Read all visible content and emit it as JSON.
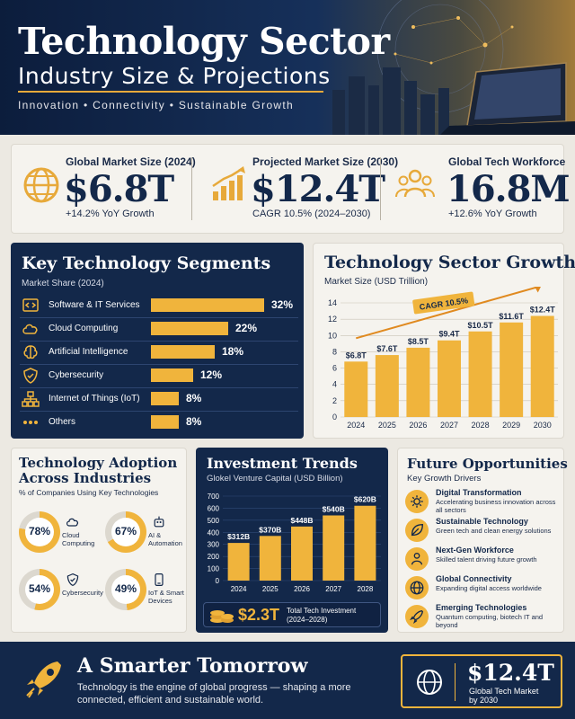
{
  "header": {
    "title": "Technology Sector",
    "subtitle": "Industry Size & Projections",
    "tagline": "Innovation  •  Connectivity  •  Sustainable Growth"
  },
  "stats": [
    {
      "label": "Global Market Size (2024)",
      "value": "$6.8T",
      "note": "+14.2% YoY Growth",
      "icon": "globe-icon"
    },
    {
      "label": "Projected Market Size (2030)",
      "value": "$12.4T",
      "note": "CAGR 10.5% (2024–2030)",
      "icon": "growth-chart-icon"
    },
    {
      "label": "Global Tech Workforce",
      "value": "16.8M",
      "note": "+12.6% YoY Growth",
      "icon": "people-icon"
    }
  ],
  "segments": {
    "title": "Key Technology Segments",
    "subtitle": "Market Share (2024)",
    "items": [
      {
        "label": "Software & IT Services",
        "pct": "32%",
        "share": 32,
        "icon": "code-icon"
      },
      {
        "label": "Cloud Computing",
        "pct": "22%",
        "share": 22,
        "icon": "cloud-icon"
      },
      {
        "label": "Artificial Intelligence",
        "pct": "18%",
        "share": 18,
        "icon": "brain-icon"
      },
      {
        "label": "Cybersecurity",
        "pct": "12%",
        "share": 12,
        "icon": "shield-icon"
      },
      {
        "label": "Internet of Things (IoT)",
        "pct": "8%",
        "share": 8,
        "icon": "network-icon"
      },
      {
        "label": "Others",
        "pct": "8%",
        "share": 8,
        "icon": "dots-icon"
      }
    ]
  },
  "chart_data": [
    {
      "type": "bar",
      "title": "Technology Sector Growth",
      "ylabel": "Market Size (USD Trillion)",
      "categories": [
        "2024",
        "2025",
        "2026",
        "2027",
        "2028",
        "2029",
        "2030"
      ],
      "values": [
        6.8,
        7.6,
        8.5,
        9.4,
        10.5,
        11.6,
        12.4
      ],
      "data_labels": [
        "$6.8T",
        "$7.6T",
        "$8.5T",
        "$9.4T",
        "$10.5T",
        "$11.6T",
        "$12.4T"
      ],
      "yticks": [
        "0",
        "2",
        "4",
        "6",
        "8",
        "10",
        "12",
        "14"
      ],
      "ylim": [
        0,
        14
      ],
      "annotation": "CAGR 10.5%",
      "grid": true
    },
    {
      "type": "bar",
      "title": "Investment Trends",
      "ylabel": "Glokel Venture Capital (USD Billion)",
      "categories": [
        "2024",
        "2025",
        "2026",
        "2027",
        "2028"
      ],
      "values": [
        312,
        370,
        448,
        540,
        620
      ],
      "data_labels": [
        "$312B",
        "$370B",
        "$448B",
        "$540B",
        "$620B"
      ],
      "yticks": [
        "0",
        "100",
        "200",
        "300",
        "400",
        "500",
        "600",
        "700"
      ],
      "ylim": [
        0,
        700
      ],
      "grid": true
    }
  ],
  "adoption": {
    "title_line1": "Technology Adoption",
    "title_line2": "Across Industries",
    "subtitle": "% of Companies Using Key Technologies",
    "items": [
      {
        "value": "78%",
        "share": 78,
        "label": "Cloud Computing",
        "icon": "cloud-icon"
      },
      {
        "value": "67%",
        "share": 67,
        "label": "AI & Automation",
        "icon": "robot-icon"
      },
      {
        "value": "54%",
        "share": 54,
        "label": "Cybersecurity",
        "icon": "shield-icon"
      },
      {
        "value": "49%",
        "share": 49,
        "label": "IoT & Smart Devices",
        "icon": "phone-icon"
      }
    ]
  },
  "investment": {
    "total_value": "$2.3T",
    "total_label_1": "Total Tech Investment",
    "total_label_2": "(2024–2028)"
  },
  "future": {
    "title": "Future Opportunities",
    "subtitle": "Key Growth Drivers",
    "items": [
      {
        "head": "Digital Transformation",
        "desc": "Accelerating business innovation across all sectors",
        "icon": "gear-icon"
      },
      {
        "head": "Sustainable Technology",
        "desc": "Green tech and clean energy solutions",
        "icon": "leaf-icon"
      },
      {
        "head": "Next-Gen Workforce",
        "desc": "Skilled talent driving future growth",
        "icon": "people-icon"
      },
      {
        "head": "Global Connectivity",
        "desc": "Expanding digital access worldwide",
        "icon": "globe-icon"
      },
      {
        "head": "Emerging Technologies",
        "desc": "Quantum computing, biotech IT and beyond",
        "icon": "rocket-icon"
      }
    ]
  },
  "footer": {
    "title": "A Smarter Tomorrow",
    "text": "Technology is the engine of global progress — shaping a more connected, efficient and sustainable world.",
    "box_value": "$12.4T",
    "box_label_1": "Global Tech Market",
    "box_label_2": "by 2030"
  },
  "colors": {
    "navy": "#13284a",
    "gold": "#f0b43c",
    "cream": "#f5f3ee"
  }
}
